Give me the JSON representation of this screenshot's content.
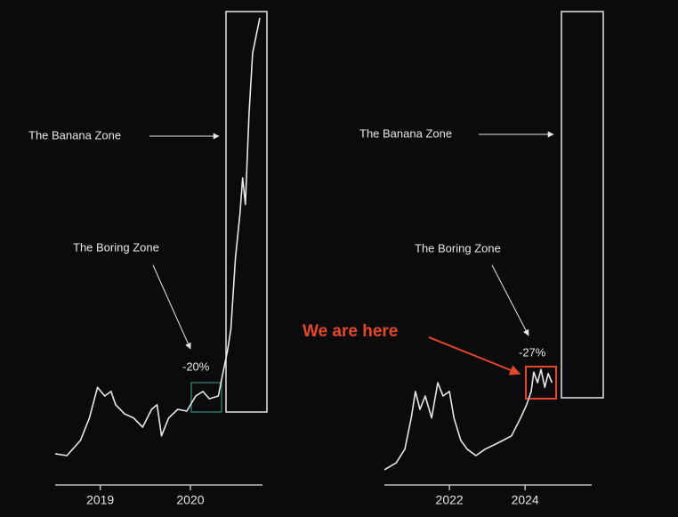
{
  "chart_data": [
    {
      "type": "line",
      "color": "#e8e8e8",
      "xlim": [
        2018.5,
        2020.8
      ],
      "xticks": [
        2019,
        2020
      ],
      "ylim": [
        0,
        100
      ],
      "x": [
        2018.5,
        2018.63,
        2018.78,
        2018.88,
        2018.97,
        2019.05,
        2019.12,
        2019.17,
        2019.27,
        2019.37,
        2019.47,
        2019.57,
        2019.63,
        2019.68,
        2019.76,
        2019.86,
        2019.96,
        2020.06,
        2020.14,
        2020.21,
        2020.31,
        2020.36,
        2020.41,
        2020.45,
        2020.5,
        2020.55,
        2020.58,
        2020.61,
        2020.65,
        2020.69,
        2020.73,
        2020.77
      ],
      "values": [
        3.9,
        3.5,
        6.8,
        11.7,
        18.4,
        16.5,
        17.5,
        14.6,
        12.6,
        11.7,
        9.7,
        13.6,
        14.6,
        7.8,
        11.7,
        13.6,
        13.2,
        16.5,
        17.5,
        15.9,
        16.5,
        21.4,
        26.2,
        31.1,
        46.6,
        56.3,
        64.1,
        58.3,
        77.7,
        91.3,
        95.1,
        99.0
      ],
      "annotations": [
        "The Banana Zone",
        "The Boring Zone",
        "-20%"
      ]
    },
    {
      "type": "line",
      "color": "#e8e8e8",
      "xlim": [
        2020.28,
        2025.76
      ],
      "xticks": [
        2022,
        2024
      ],
      "ylim": [
        0,
        100
      ],
      "x": [
        2020.28,
        2020.59,
        2020.82,
        2020.99,
        2021.1,
        2021.22,
        2021.36,
        2021.53,
        2021.69,
        2021.83,
        2022.0,
        2022.12,
        2022.3,
        2022.47,
        2022.7,
        2022.94,
        2023.17,
        2023.41,
        2023.64,
        2023.88,
        2024.04,
        2024.16,
        2024.23,
        2024.33,
        2024.42,
        2024.52,
        2024.61,
        2024.71
      ],
      "values": [
        0.4,
        1.9,
        4.9,
        11.7,
        17.5,
        13.6,
        16.5,
        11.7,
        19.4,
        16.5,
        17.5,
        11.7,
        6.8,
        4.9,
        3.5,
        4.9,
        5.8,
        6.8,
        7.8,
        11.7,
        14.6,
        17.5,
        21.7,
        19.4,
        22.3,
        18.4,
        21.4,
        19.4
      ],
      "annotations": [
        "The Banana Zone",
        "The Boring Zone",
        "-27%",
        "We are here"
      ]
    }
  ]
}
